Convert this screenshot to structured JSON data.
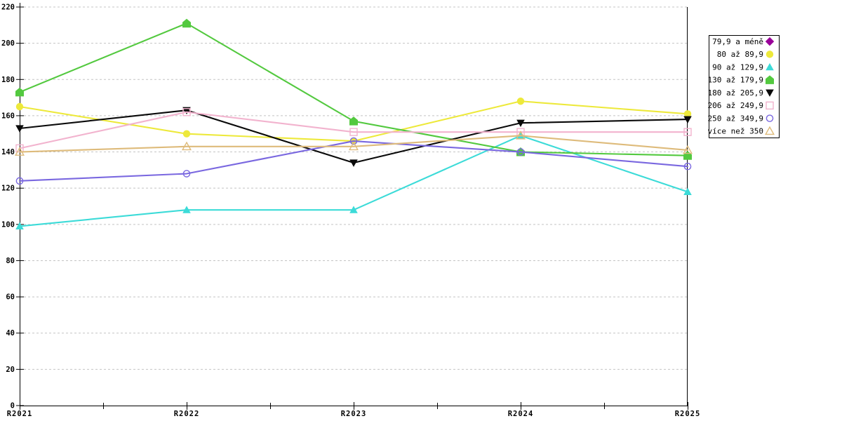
{
  "chart_data": {
    "type": "line",
    "title": "",
    "xlabel": "",
    "ylabel": "",
    "categories": [
      "R2021",
      "R2022",
      "R2023",
      "R2024",
      "R2025"
    ],
    "ylim": [
      0,
      220
    ],
    "y_tick_step": 20,
    "y_ticks": [
      0,
      20,
      40,
      60,
      80,
      100,
      120,
      140,
      160,
      180,
      200,
      220
    ],
    "grid": "horizontal-dashed",
    "legend_position": "right-outside",
    "series": [
      {
        "name": "79,9 a méně",
        "color": "#990099",
        "marker": "diamond",
        "filled": true,
        "values": [
          null,
          null,
          null,
          null,
          null
        ]
      },
      {
        "name": "80 až 89,9",
        "color": "#EDE93B",
        "marker": "circle",
        "filled": true,
        "values": [
          165,
          150,
          146,
          168,
          161
        ]
      },
      {
        "name": "90 až 129,9",
        "color": "#3CDBD8",
        "marker": "triangle-up",
        "filled": true,
        "values": [
          99,
          108,
          108,
          149,
          118
        ]
      },
      {
        "name": "130 až 179,9",
        "color": "#53C93F",
        "marker": "pentagon",
        "filled": true,
        "values": [
          173,
          211,
          157,
          140,
          138
        ]
      },
      {
        "name": "180 až 205,9",
        "color": "#0A0A0A",
        "marker": "triangle-down",
        "filled": true,
        "values": [
          153,
          163,
          134,
          156,
          158
        ]
      },
      {
        "name": "206 až 249,9",
        "color": "#F2B3CE",
        "marker": "square",
        "filled": false,
        "values": [
          142,
          162,
          151,
          151,
          151
        ]
      },
      {
        "name": "250 až 349,9",
        "color": "#7A68E0",
        "marker": "circle",
        "filled": false,
        "values": [
          124,
          128,
          146,
          140,
          132
        ]
      },
      {
        "name": "více než 350",
        "color": "#DEBB7B",
        "marker": "triangle-up",
        "filled": false,
        "values": [
          140,
          143,
          143,
          149,
          141
        ]
      }
    ],
    "colors": {
      "background": "#FFFFFF",
      "axis": "#000000",
      "gridline": "#C4C4C4",
      "legend_border": "#000000",
      "legend_background": "#FFFFFF",
      "tick_label": "#000000"
    }
  }
}
